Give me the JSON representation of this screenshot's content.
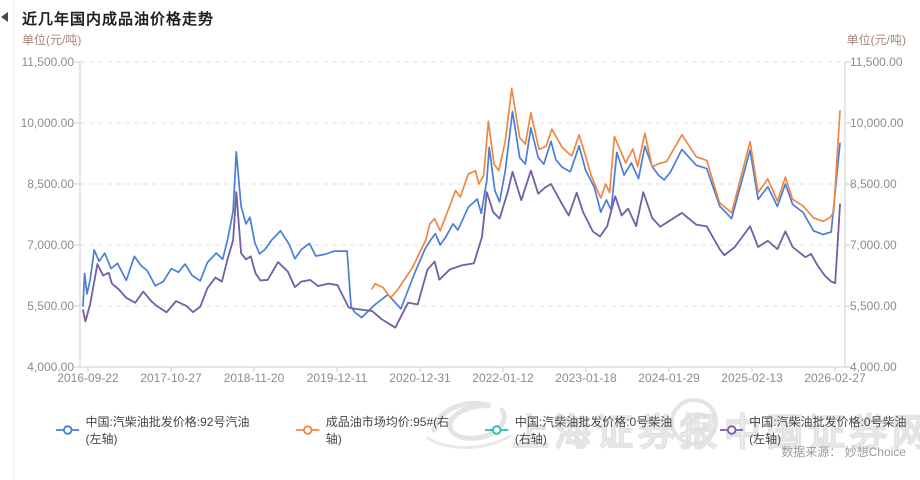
{
  "page": {
    "title": "近几年国内成品油价格走势",
    "unit_left": "单位(元/吨)",
    "unit_right": "单位(元/吨)",
    "source": "数据来源： 妙想Choice"
  },
  "watermark": {
    "brand1": "上海证券报",
    "brand2": "中国证券网"
  },
  "chart_data": {
    "type": "line",
    "title": "近几年国内成品油价格走势",
    "y_unit": "元/吨",
    "grid": true,
    "legend_position": "bottom",
    "y_axis_left": {
      "min": 4000,
      "max": 11500,
      "tick_step": 1500,
      "tick_labels": [
        "4,000.00",
        "5,500.00",
        "7,000.00",
        "8,500.00",
        "10,000.00",
        "11,500.00"
      ]
    },
    "y_axis_right": {
      "min": 4000,
      "max": 11500,
      "tick_step": 1500,
      "tick_labels": [
        "4,000.00",
        "5,500.00",
        "7,000.00",
        "8,500.00",
        "10,000.00",
        "11,500.00"
      ]
    },
    "x_axis": {
      "labels": [
        "2016-09-22",
        "2017-10-27",
        "2018-11-20",
        "2019-12-11",
        "2020-12-31",
        "2022-01-12",
        "2023-01-18",
        "2024-01-29",
        "2025-02-13",
        "2026-02-27"
      ],
      "start_year": 2016.73,
      "end_year": 2026.16
    },
    "series": [
      {
        "name": "中国:汽柴油批发价格:92号汽油(左轴)",
        "color": "#4a7ed8",
        "axis": "left",
        "points": [
          [
            2016.73,
            5500
          ],
          [
            2016.75,
            6300
          ],
          [
            2016.78,
            5800
          ],
          [
            2016.82,
            6150
          ],
          [
            2016.87,
            6880
          ],
          [
            2016.93,
            6600
          ],
          [
            2017.0,
            6800
          ],
          [
            2017.08,
            6420
          ],
          [
            2017.16,
            6550
          ],
          [
            2017.27,
            6130
          ],
          [
            2017.37,
            6720
          ],
          [
            2017.45,
            6500
          ],
          [
            2017.53,
            6370
          ],
          [
            2017.63,
            6000
          ],
          [
            2017.73,
            6100
          ],
          [
            2017.83,
            6420
          ],
          [
            2017.92,
            6330
          ],
          [
            2018.0,
            6530
          ],
          [
            2018.09,
            6250
          ],
          [
            2018.19,
            6120
          ],
          [
            2018.28,
            6570
          ],
          [
            2018.39,
            6800
          ],
          [
            2018.47,
            6650
          ],
          [
            2018.53,
            7120
          ],
          [
            2018.6,
            7830
          ],
          [
            2018.64,
            9290
          ],
          [
            2018.7,
            7950
          ],
          [
            2018.76,
            7520
          ],
          [
            2018.81,
            7680
          ],
          [
            2018.87,
            7060
          ],
          [
            2018.93,
            6780
          ],
          [
            2019.0,
            6900
          ],
          [
            2019.08,
            7120
          ],
          [
            2019.19,
            7350
          ],
          [
            2019.3,
            7010
          ],
          [
            2019.37,
            6660
          ],
          [
            2019.45,
            6890
          ],
          [
            2019.55,
            7040
          ],
          [
            2019.63,
            6730
          ],
          [
            2019.74,
            6770
          ],
          [
            2019.86,
            6850
          ],
          [
            2020.02,
            6850
          ],
          [
            2020.07,
            5470
          ],
          [
            2020.12,
            5340
          ],
          [
            2020.2,
            5215
          ],
          [
            2020.37,
            5540
          ],
          [
            2020.53,
            5780
          ],
          [
            2020.69,
            5430
          ],
          [
            2020.86,
            6300
          ],
          [
            2020.99,
            6900
          ],
          [
            2021.06,
            7120
          ],
          [
            2021.12,
            7280
          ],
          [
            2021.18,
            7000
          ],
          [
            2021.25,
            7200
          ],
          [
            2021.34,
            7520
          ],
          [
            2021.4,
            7370
          ],
          [
            2021.53,
            7930
          ],
          [
            2021.64,
            8130
          ],
          [
            2021.69,
            7780
          ],
          [
            2021.76,
            8580
          ],
          [
            2021.79,
            9400
          ],
          [
            2021.86,
            8340
          ],
          [
            2021.92,
            8060
          ],
          [
            2021.99,
            8830
          ],
          [
            2022.08,
            10280
          ],
          [
            2022.17,
            9150
          ],
          [
            2022.24,
            8990
          ],
          [
            2022.31,
            9880
          ],
          [
            2022.4,
            9150
          ],
          [
            2022.47,
            8990
          ],
          [
            2022.56,
            9550
          ],
          [
            2022.62,
            9100
          ],
          [
            2022.7,
            8910
          ],
          [
            2022.8,
            8800
          ],
          [
            2022.91,
            9440
          ],
          [
            2022.99,
            8845
          ],
          [
            2023.1,
            8415
          ],
          [
            2023.18,
            7810
          ],
          [
            2023.25,
            8110
          ],
          [
            2023.31,
            7855
          ],
          [
            2023.38,
            9280
          ],
          [
            2023.47,
            8720
          ],
          [
            2023.56,
            9020
          ],
          [
            2023.65,
            8630
          ],
          [
            2023.73,
            9430
          ],
          [
            2023.82,
            8930
          ],
          [
            2023.9,
            8715
          ],
          [
            2023.97,
            8600
          ],
          [
            2024.05,
            8800
          ],
          [
            2024.19,
            9350
          ],
          [
            2024.37,
            8960
          ],
          [
            2024.5,
            8880
          ],
          [
            2024.66,
            7960
          ],
          [
            2024.81,
            7650
          ],
          [
            2025.04,
            9330
          ],
          [
            2025.14,
            8120
          ],
          [
            2025.26,
            8430
          ],
          [
            2025.38,
            7950
          ],
          [
            2025.48,
            8500
          ],
          [
            2025.57,
            8000
          ],
          [
            2025.7,
            7800
          ],
          [
            2025.83,
            7350
          ],
          [
            2025.95,
            7260
          ],
          [
            2026.05,
            7320
          ],
          [
            2026.16,
            9500
          ]
        ]
      },
      {
        "name": "成品油市场均价:95#(右轴)",
        "color": "#f08643",
        "axis": "right",
        "points": [
          [
            2020.33,
            5920
          ],
          [
            2020.37,
            6050
          ],
          [
            2020.42,
            6000
          ],
          [
            2020.47,
            5950
          ],
          [
            2020.56,
            5700
          ],
          [
            2020.65,
            5900
          ],
          [
            2020.83,
            6430
          ],
          [
            2020.97,
            7000
          ],
          [
            2021.0,
            7120
          ],
          [
            2021.05,
            7520
          ],
          [
            2021.11,
            7650
          ],
          [
            2021.18,
            7350
          ],
          [
            2021.31,
            8020
          ],
          [
            2021.37,
            8340
          ],
          [
            2021.43,
            8180
          ],
          [
            2021.53,
            8745
          ],
          [
            2021.62,
            8825
          ],
          [
            2021.66,
            8500
          ],
          [
            2021.72,
            8705
          ],
          [
            2021.78,
            10040
          ],
          [
            2021.85,
            8990
          ],
          [
            2021.91,
            8830
          ],
          [
            2021.99,
            9560
          ],
          [
            2022.07,
            10850
          ],
          [
            2022.17,
            9640
          ],
          [
            2022.24,
            9480
          ],
          [
            2022.31,
            10250
          ],
          [
            2022.41,
            9350
          ],
          [
            2022.5,
            9430
          ],
          [
            2022.57,
            9850
          ],
          [
            2022.7,
            9400
          ],
          [
            2022.78,
            9250
          ],
          [
            2022.82,
            9190
          ],
          [
            2022.91,
            9710
          ],
          [
            2022.99,
            9190
          ],
          [
            2023.06,
            8715
          ],
          [
            2023.14,
            8330
          ],
          [
            2023.18,
            8155
          ],
          [
            2023.24,
            8500
          ],
          [
            2023.29,
            8285
          ],
          [
            2023.35,
            9665
          ],
          [
            2023.49,
            9020
          ],
          [
            2023.58,
            9360
          ],
          [
            2023.64,
            8930
          ],
          [
            2023.73,
            9750
          ],
          [
            2023.82,
            8920
          ],
          [
            2023.9,
            9000
          ],
          [
            2024.0,
            9050
          ],
          [
            2024.19,
            9710
          ],
          [
            2024.37,
            9170
          ],
          [
            2024.5,
            9080
          ],
          [
            2024.66,
            8040
          ],
          [
            2024.81,
            7790
          ],
          [
            2025.04,
            9540
          ],
          [
            2025.14,
            8290
          ],
          [
            2025.26,
            8625
          ],
          [
            2025.38,
            8080
          ],
          [
            2025.48,
            8670
          ],
          [
            2025.57,
            8125
          ],
          [
            2025.7,
            7960
          ],
          [
            2025.83,
            7670
          ],
          [
            2025.95,
            7580
          ],
          [
            2026.03,
            7670
          ],
          [
            2026.08,
            7790
          ],
          [
            2026.16,
            10300
          ]
        ]
      },
      {
        "name": "中国:汽柴油批发价格:0号柴油(右轴)",
        "color": "#2ab7b7",
        "axis": "right",
        "points_ref": 3
      },
      {
        "name": "中国:汽柴油批发价格:0号柴油(左轴)",
        "color": "#7d5ba6",
        "axis": "left",
        "points": [
          [
            2016.73,
            5400
          ],
          [
            2016.76,
            5120
          ],
          [
            2016.82,
            5550
          ],
          [
            2016.91,
            6530
          ],
          [
            2016.98,
            6250
          ],
          [
            2017.05,
            6320
          ],
          [
            2017.09,
            6050
          ],
          [
            2017.18,
            5900
          ],
          [
            2017.27,
            5700
          ],
          [
            2017.38,
            5580
          ],
          [
            2017.48,
            5855
          ],
          [
            2017.58,
            5620
          ],
          [
            2017.65,
            5500
          ],
          [
            2017.77,
            5345
          ],
          [
            2017.89,
            5620
          ],
          [
            2018.02,
            5500
          ],
          [
            2018.1,
            5350
          ],
          [
            2018.19,
            5480
          ],
          [
            2018.28,
            5935
          ],
          [
            2018.38,
            6200
          ],
          [
            2018.46,
            6100
          ],
          [
            2018.53,
            6645
          ],
          [
            2018.6,
            7120
          ],
          [
            2018.64,
            8300
          ],
          [
            2018.7,
            6800
          ],
          [
            2018.76,
            6645
          ],
          [
            2018.82,
            6720
          ],
          [
            2018.88,
            6300
          ],
          [
            2018.94,
            6130
          ],
          [
            2019.03,
            6140
          ],
          [
            2019.16,
            6580
          ],
          [
            2019.28,
            6350
          ],
          [
            2019.37,
            5965
          ],
          [
            2019.45,
            6100
          ],
          [
            2019.56,
            6140
          ],
          [
            2019.66,
            5990
          ],
          [
            2019.79,
            6050
          ],
          [
            2019.9,
            6015
          ],
          [
            2020.04,
            5460
          ],
          [
            2020.12,
            5430
          ],
          [
            2020.24,
            5400
          ],
          [
            2020.33,
            5380
          ],
          [
            2020.45,
            5175
          ],
          [
            2020.62,
            4970
          ],
          [
            2020.78,
            5580
          ],
          [
            2020.9,
            5540
          ],
          [
            2021.02,
            6390
          ],
          [
            2021.11,
            6595
          ],
          [
            2021.17,
            6150
          ],
          [
            2021.3,
            6400
          ],
          [
            2021.45,
            6500
          ],
          [
            2021.6,
            6550
          ],
          [
            2021.7,
            7200
          ],
          [
            2021.76,
            8300
          ],
          [
            2021.84,
            7810
          ],
          [
            2021.92,
            7650
          ],
          [
            2022.02,
            8300
          ],
          [
            2022.08,
            8800
          ],
          [
            2022.19,
            8100
          ],
          [
            2022.31,
            8830
          ],
          [
            2022.4,
            8260
          ],
          [
            2022.49,
            8420
          ],
          [
            2022.56,
            8500
          ],
          [
            2022.7,
            8000
          ],
          [
            2022.78,
            7725
          ],
          [
            2022.88,
            8285
          ],
          [
            2022.96,
            7810
          ],
          [
            2023.08,
            7335
          ],
          [
            2023.17,
            7210
          ],
          [
            2023.26,
            7465
          ],
          [
            2023.36,
            8200
          ],
          [
            2023.44,
            7725
          ],
          [
            2023.52,
            7895
          ],
          [
            2023.62,
            7465
          ],
          [
            2023.71,
            8300
          ],
          [
            2023.82,
            7665
          ],
          [
            2023.92,
            7450
          ],
          [
            2024.0,
            7550
          ],
          [
            2024.19,
            7790
          ],
          [
            2024.37,
            7500
          ],
          [
            2024.5,
            7460
          ],
          [
            2024.66,
            6900
          ],
          [
            2024.72,
            6750
          ],
          [
            2024.85,
            6950
          ],
          [
            2025.04,
            7460
          ],
          [
            2025.14,
            6950
          ],
          [
            2025.26,
            7100
          ],
          [
            2025.38,
            6900
          ],
          [
            2025.48,
            7335
          ],
          [
            2025.57,
            6950
          ],
          [
            2025.73,
            6700
          ],
          [
            2025.8,
            6780
          ],
          [
            2025.88,
            6500
          ],
          [
            2025.97,
            6250
          ],
          [
            2026.05,
            6100
          ],
          [
            2026.1,
            6060
          ],
          [
            2026.16,
            8000
          ]
        ]
      }
    ]
  }
}
